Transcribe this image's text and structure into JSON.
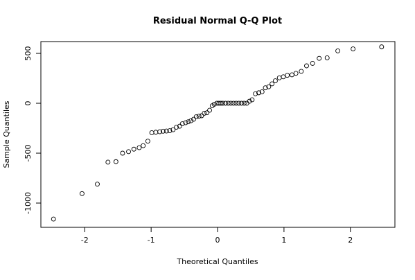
{
  "chart_data": {
    "type": "scatter",
    "title": "Residual Normal Q-Q Plot",
    "xlabel": "Theoretical Quantiles",
    "ylabel": "Sample Quantiles",
    "x": [
      -2.47,
      -2.04,
      -1.81,
      -1.65,
      -1.53,
      -1.43,
      -1.34,
      -1.26,
      -1.18,
      -1.12,
      -1.05,
      -0.99,
      -0.93,
      -0.87,
      -0.82,
      -0.77,
      -0.72,
      -0.67,
      -0.62,
      -0.57,
      -0.53,
      -0.48,
      -0.44,
      -0.4,
      -0.36,
      -0.32,
      -0.28,
      -0.24,
      -0.2,
      -0.16,
      -0.12,
      -0.08,
      -0.05,
      -0.01,
      0.02,
      0.05,
      0.08,
      0.12,
      0.16,
      0.2,
      0.24,
      0.28,
      0.32,
      0.36,
      0.4,
      0.44,
      0.48,
      0.52,
      0.57,
      0.62,
      0.67,
      0.72,
      0.77,
      0.82,
      0.87,
      0.93,
      0.99,
      1.05,
      1.12,
      1.18,
      1.26,
      1.34,
      1.43,
      1.53,
      1.65,
      1.81,
      2.04,
      2.47
    ],
    "values": [
      -1160,
      -905,
      -810,
      -590,
      -585,
      -500,
      -485,
      -460,
      -445,
      -425,
      -380,
      -295,
      -290,
      -285,
      -280,
      -278,
      -275,
      -265,
      -240,
      -230,
      -205,
      -195,
      -185,
      -175,
      -160,
      -135,
      -130,
      -125,
      -100,
      -95,
      -70,
      -25,
      -10,
      0,
      0,
      0,
      0,
      0,
      0,
      0,
      0,
      0,
      0,
      0,
      0,
      0,
      20,
      35,
      95,
      105,
      115,
      155,
      165,
      195,
      225,
      255,
      265,
      280,
      285,
      300,
      320,
      375,
      400,
      450,
      455,
      525,
      545,
      565
    ],
    "color": "#000000",
    "xlim": [
      -2.66,
      2.67
    ],
    "ylim": [
      -1243,
      618
    ],
    "xticks": [
      -2,
      -1,
      0,
      1,
      2
    ],
    "yticks": [
      -1000,
      -500,
      0,
      500
    ]
  }
}
